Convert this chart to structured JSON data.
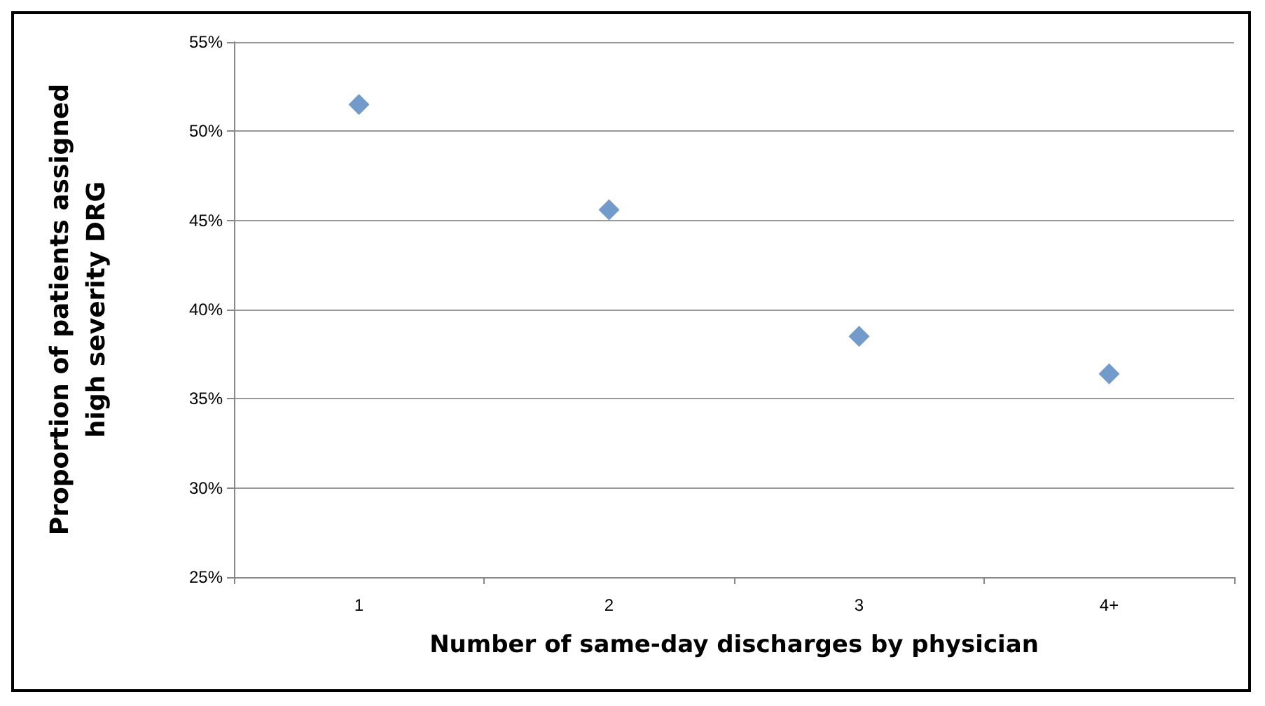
{
  "chart_data": {
    "type": "scatter",
    "xlabel": "Number of same-day discharges by physician",
    "ylabel": "Proportion of patients assigned high severity DRG",
    "categories": [
      "1",
      "2",
      "3",
      "4+"
    ],
    "series": [
      {
        "color": "#4f81bd",
        "values": [
          51.5,
          45.6,
          38.5,
          36.4
        ]
      }
    ],
    "ylim": [
      25,
      55
    ],
    "yticks": [
      {
        "value": 25,
        "label": "25%"
      },
      {
        "value": 30,
        "label": "30%"
      },
      {
        "value": 35,
        "label": "35%"
      },
      {
        "value": 40,
        "label": "40%"
      },
      {
        "value": 45,
        "label": "45%"
      },
      {
        "value": 50,
        "label": "50%"
      },
      {
        "value": 55,
        "label": "55%"
      }
    ],
    "grid": "y",
    "marker": "diamond"
  }
}
